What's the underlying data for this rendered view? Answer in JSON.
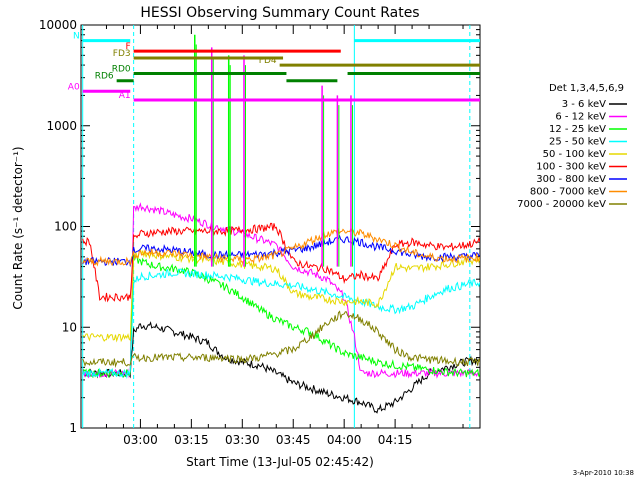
{
  "chart_data": {
    "type": "line",
    "title": "HESSI Observing Summary Count Rates",
    "xlabel": "Start Time (13-Jul-05 02:45:42)",
    "ylabel": "Count Rate (s⁻¹ detector⁻¹)",
    "ylim": [
      1,
      10000
    ],
    "yscale": "log",
    "y_ticks": [
      1,
      10,
      100,
      1000,
      10000
    ],
    "y_tick_labels": [
      "1",
      "10",
      "100",
      "1000",
      "10000"
    ],
    "xlim_minutes": [
      -17.5,
      100
    ],
    "x_ticks": [
      "03:00",
      "03:15",
      "03:30",
      "03:45",
      "04:00",
      "04:15"
    ],
    "grid": false,
    "legend_position": "right",
    "legend_title": "Det 1,3,4,5,6,9",
    "date_stamp": "3-Apr-2010 10:38",
    "series": [
      {
        "name": "3 - 6 keV",
        "color": "#000000",
        "x": [
          -17,
          -3,
          -2,
          0,
          5,
          10,
          15,
          20,
          22,
          25,
          30,
          35,
          40,
          45,
          50,
          55,
          60,
          65,
          70,
          75,
          80,
          85,
          90,
          95,
          100
        ],
        "y": [
          3.5,
          3.5,
          9,
          10.5,
          10,
          9,
          8,
          7,
          6,
          5,
          4.5,
          4.2,
          3.5,
          2.8,
          2.5,
          2.2,
          2.0,
          1.8,
          1.5,
          1.8,
          2.5,
          3.5,
          4.0,
          4.5,
          4.8
        ]
      },
      {
        "name": "6 - 12 keV",
        "color": "#ff00ff",
        "x": [
          -17,
          -3,
          -2,
          0,
          5,
          10,
          15,
          20,
          25,
          30,
          35,
          40,
          45,
          50,
          55,
          60,
          63,
          65,
          70,
          75,
          80,
          85,
          90,
          95,
          100
        ],
        "y": [
          3.5,
          3.5,
          150,
          160,
          145,
          130,
          120,
          105,
          95,
          85,
          75,
          65,
          40,
          35,
          30,
          20,
          8,
          3.5,
          3.5,
          3.5,
          3.5,
          3.5,
          3.5,
          3.5,
          3.5
        ]
      },
      {
        "name": "12 - 25 keV",
        "color": "#00ff00",
        "x": [
          -17,
          -3,
          -2,
          0,
          5,
          10,
          15,
          20,
          25,
          30,
          35,
          40,
          45,
          50,
          55,
          60,
          65,
          70,
          75,
          80,
          85,
          90,
          95,
          100
        ],
        "y": [
          3.5,
          3.5,
          48,
          45,
          40,
          38,
          35,
          30,
          25,
          20,
          15,
          12,
          10,
          9,
          7,
          5.5,
          5,
          4.5,
          4.2,
          4,
          3.8,
          3.6,
          3.5,
          3.5
        ]
      },
      {
        "name": "25 - 50 keV",
        "color": "#00ffff",
        "x": [
          -17,
          -3,
          -2,
          0,
          5,
          10,
          15,
          20,
          25,
          30,
          35,
          40,
          45,
          50,
          55,
          60,
          65,
          70,
          75,
          80,
          85,
          90,
          95,
          100
        ],
        "y": [
          3.5,
          3.5,
          28,
          32,
          33,
          35,
          34,
          33,
          32,
          30,
          28,
          27,
          26,
          24,
          22,
          20,
          18,
          16,
          15,
          16,
          20,
          24,
          26,
          28
        ]
      },
      {
        "name": "50 - 100 keV",
        "color": "#e6d800",
        "x": [
          -17,
          -3,
          -2,
          0,
          5,
          10,
          15,
          20,
          25,
          30,
          35,
          40,
          45,
          50,
          55,
          60,
          65,
          70,
          75,
          80,
          85,
          90,
          95,
          100
        ],
        "y": [
          8,
          8,
          48,
          55,
          52,
          50,
          48,
          46,
          44,
          42,
          40,
          38,
          22,
          20,
          19,
          18,
          18,
          17,
          40,
          38,
          40,
          42,
          45,
          48
        ]
      },
      {
        "name": "100 - 300 keV",
        "color": "#ff0000",
        "x": [
          -17,
          -15,
          -12,
          -3,
          -2,
          0,
          5,
          10,
          15,
          20,
          25,
          30,
          35,
          40,
          45,
          50,
          55,
          60,
          65,
          70,
          75,
          80,
          85,
          90,
          95,
          100
        ],
        "y": [
          70,
          72,
          20,
          20,
          75,
          85,
          88,
          90,
          90,
          90,
          90,
          92,
          95,
          100,
          45,
          40,
          38,
          30,
          33,
          30,
          65,
          70,
          65,
          62,
          65,
          70
        ]
      },
      {
        "name": "300 - 800 keV",
        "color": "#0000ff",
        "x": [
          -17,
          -3,
          -2,
          0,
          5,
          10,
          15,
          20,
          25,
          30,
          35,
          40,
          45,
          50,
          55,
          60,
          65,
          70,
          75,
          80,
          85,
          90,
          95,
          100
        ],
        "y": [
          45,
          45,
          58,
          60,
          60,
          58,
          55,
          52,
          52,
          52,
          53,
          55,
          58,
          62,
          70,
          75,
          70,
          62,
          58,
          52,
          50,
          50,
          50,
          52
        ]
      },
      {
        "name": "800 - 7000 keV",
        "color": "#ff8c00",
        "x": [
          -17,
          -3,
          -2,
          0,
          5,
          10,
          15,
          20,
          25,
          30,
          35,
          40,
          45,
          50,
          55,
          60,
          65,
          70,
          75,
          80,
          85,
          90,
          95,
          100
        ],
        "y": [
          45,
          45,
          52,
          55,
          55,
          54,
          52,
          50,
          48,
          47,
          48,
          52,
          60,
          72,
          85,
          90,
          85,
          75,
          65,
          55,
          50,
          48,
          48,
          50
        ]
      },
      {
        "name": "7000 - 20000 keV",
        "color": "#808000",
        "x": [
          -17,
          -3,
          -2,
          0,
          5,
          10,
          15,
          20,
          25,
          30,
          35,
          40,
          45,
          50,
          55,
          60,
          65,
          70,
          75,
          80,
          85,
          90,
          95,
          100
        ],
        "y": [
          4.5,
          4.5,
          5,
          5,
          5,
          5,
          5,
          5,
          5,
          4.8,
          5,
          5.5,
          6,
          8,
          11,
          14,
          12,
          9,
          6,
          5,
          4.8,
          4.6,
          4.5,
          4.5
        ]
      }
    ],
    "spikes": [
      {
        "x": 16,
        "y": 8000
      },
      {
        "x": 21,
        "y": 6000
      },
      {
        "x": 26,
        "y": 5000
      },
      {
        "x": 30.5,
        "y": 5000
      },
      {
        "x": 53.5,
        "y": 2500
      },
      {
        "x": 58,
        "y": 2000
      },
      {
        "x": 62,
        "y": 2000
      }
    ],
    "annotations": {
      "bars": [
        {
          "label": "N",
          "color": "#00ffff",
          "segments": [
            [
              -17,
              -3
            ],
            [
              63,
              100
            ]
          ],
          "y": 7000
        },
        {
          "label": "F",
          "color": "#ff0000",
          "segments": [
            [
              -2,
              59
            ]
          ],
          "y": 5500
        },
        {
          "label": "FD3",
          "color": "#808000",
          "segments": [
            [
              -2,
              42
            ]
          ],
          "y": 4700
        },
        {
          "label": "FD4",
          "color": "#808000",
          "segments": [
            [
              41,
              100
            ]
          ],
          "y": 4000
        },
        {
          "label": "RD0",
          "color": "#008000",
          "segments": [
            [
              -2,
              43
            ],
            [
              61,
              100
            ]
          ],
          "y": 3300
        },
        {
          "label": "RD6",
          "color": "#008000",
          "segments": [
            [
              -7,
              -2
            ],
            [
              43,
              58
            ]
          ],
          "y": 2800
        },
        {
          "label": "A0",
          "color": "#ff00ff",
          "segments": [
            [
              -17,
              -3
            ]
          ],
          "y": 2200
        },
        {
          "label": "A1",
          "color": "#ff00ff",
          "segments": [
            [
              -2,
              100
            ]
          ],
          "y": 1800
        }
      ],
      "vertical_lines_dashed": [
        -2,
        97
      ],
      "vertical_lines_solid": [
        -17,
        63
      ]
    }
  }
}
